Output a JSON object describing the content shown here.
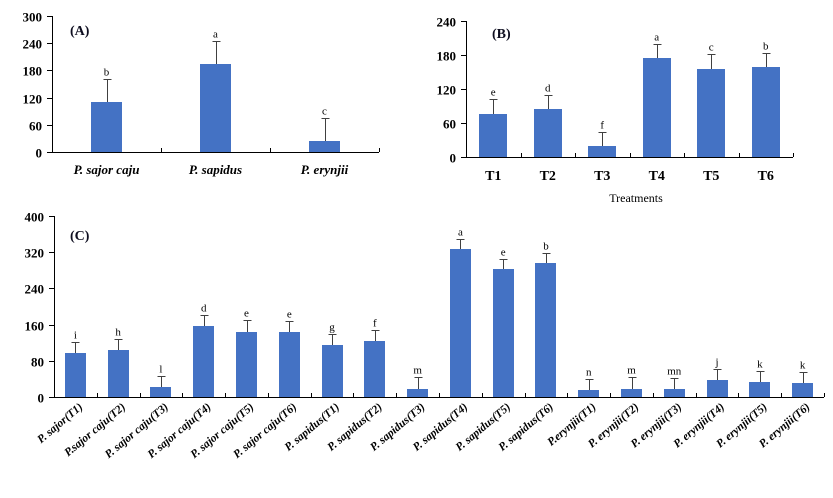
{
  "chart_data": [
    {
      "id": "A",
      "type": "bar",
      "panel_label": "(A)",
      "title": "",
      "xlabel": "",
      "ylabel": "",
      "ylim": [
        0,
        300
      ],
      "yticks": [
        0,
        60,
        120,
        180,
        240,
        300
      ],
      "categories": [
        "P. sajor caju",
        "P. sapidus",
        "P. erynjii"
      ],
      "values": [
        111,
        194,
        25
      ],
      "error_upper": [
        161,
        244,
        75
      ],
      "significance": [
        "b",
        "a",
        "c"
      ],
      "bar_color": "#4472c4",
      "grid": false
    },
    {
      "id": "B",
      "type": "bar",
      "panel_label": "(B)",
      "title": "",
      "xlabel": "Treatments",
      "ylabel": "",
      "ylim": [
        0,
        240
      ],
      "yticks": [
        0,
        60,
        120,
        180,
        240
      ],
      "categories": [
        "T1",
        "T2",
        "T3",
        "T4",
        "T5",
        "T6"
      ],
      "values": [
        76,
        84,
        19,
        174,
        155,
        158
      ],
      "error_upper": [
        102,
        110,
        45,
        200,
        181,
        183
      ],
      "significance": [
        "e",
        "d",
        "f",
        "a",
        "c",
        "b"
      ],
      "bar_color": "#4472c4",
      "grid": false
    },
    {
      "id": "C",
      "type": "bar",
      "panel_label": "(C)",
      "title": "",
      "xlabel": "",
      "ylabel": "",
      "ylim": [
        0,
        400
      ],
      "yticks": [
        0,
        80,
        160,
        240,
        320,
        400
      ],
      "categories": [
        "P. sajor(T1)",
        "P.sajor caju(T2)",
        "P. sajor caju(T3)",
        "P. sajor caju(T4)",
        "P. sajor caju(T5)",
        "P. sajor caju(T6)",
        "P. sapidus(T1)",
        "P. sapidus(T2)",
        "P. sapidus(T3)",
        "P. sapidus(T4)",
        "P. sapidus(T5)",
        "P. sapidus(T6)",
        "P.erynjii(T1)",
        "P. erynjii(T2)",
        "P. erynjii(T3)",
        "P. erynjii(T4)",
        "P. erynjii(T5)",
        "P. erynjii(T6)"
      ],
      "values": [
        98,
        104,
        23,
        157,
        144,
        144,
        115,
        124,
        18,
        327,
        283,
        296,
        16,
        18,
        18,
        38,
        34,
        32
      ],
      "error_upper": [
        121,
        128,
        46,
        181,
        170,
        168,
        139,
        148,
        44,
        350,
        306,
        318,
        39,
        44,
        42,
        62,
        57,
        55
      ],
      "significance": [
        "i",
        "h",
        "l",
        "d",
        "e",
        "e",
        "g",
        "f",
        "m",
        "a",
        "e",
        "b",
        "n",
        "m",
        "mn",
        "j",
        "k",
        "k"
      ],
      "bar_color": "#4472c4",
      "grid": false
    }
  ]
}
